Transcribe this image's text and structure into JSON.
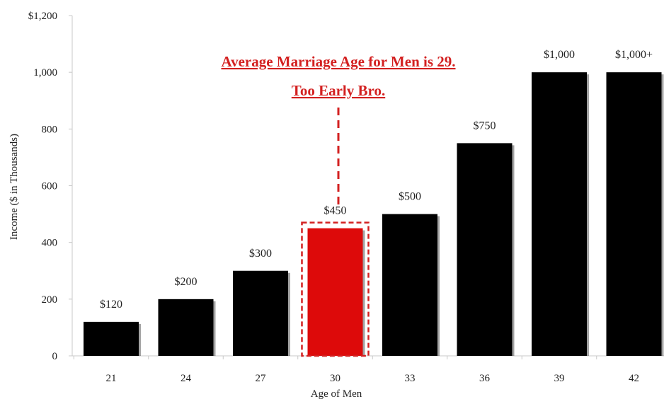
{
  "chart_data": {
    "type": "bar",
    "categories": [
      "21",
      "24",
      "27",
      "30",
      "33",
      "36",
      "39",
      "42"
    ],
    "values": [
      120,
      200,
      300,
      450,
      500,
      750,
      1000,
      1000
    ],
    "data_labels": [
      "$120",
      "$200",
      "$300",
      "$450",
      "$500",
      "$750",
      "$1,000",
      "$1,000+"
    ],
    "highlight_category": "30",
    "xlabel": "Age of Men",
    "ylabel": "Income ($ in Thousands)",
    "ylim": [
      0,
      1200
    ],
    "yticks": [
      0,
      200,
      400,
      600,
      800,
      1000,
      1200
    ],
    "ytick_labels": [
      "0",
      "200",
      "400",
      "600",
      "800",
      "1,000",
      "$1,200"
    ],
    "grid": false,
    "legend": "none",
    "annotation": {
      "lines": [
        "Average Marriage Age for Men is 29.",
        "Too Early Bro."
      ],
      "target_category": "30"
    },
    "colors": {
      "bar": "#000000",
      "highlight": "#dd0a0a",
      "annotation": "#d32020",
      "axis": "#c8c8c8"
    }
  }
}
